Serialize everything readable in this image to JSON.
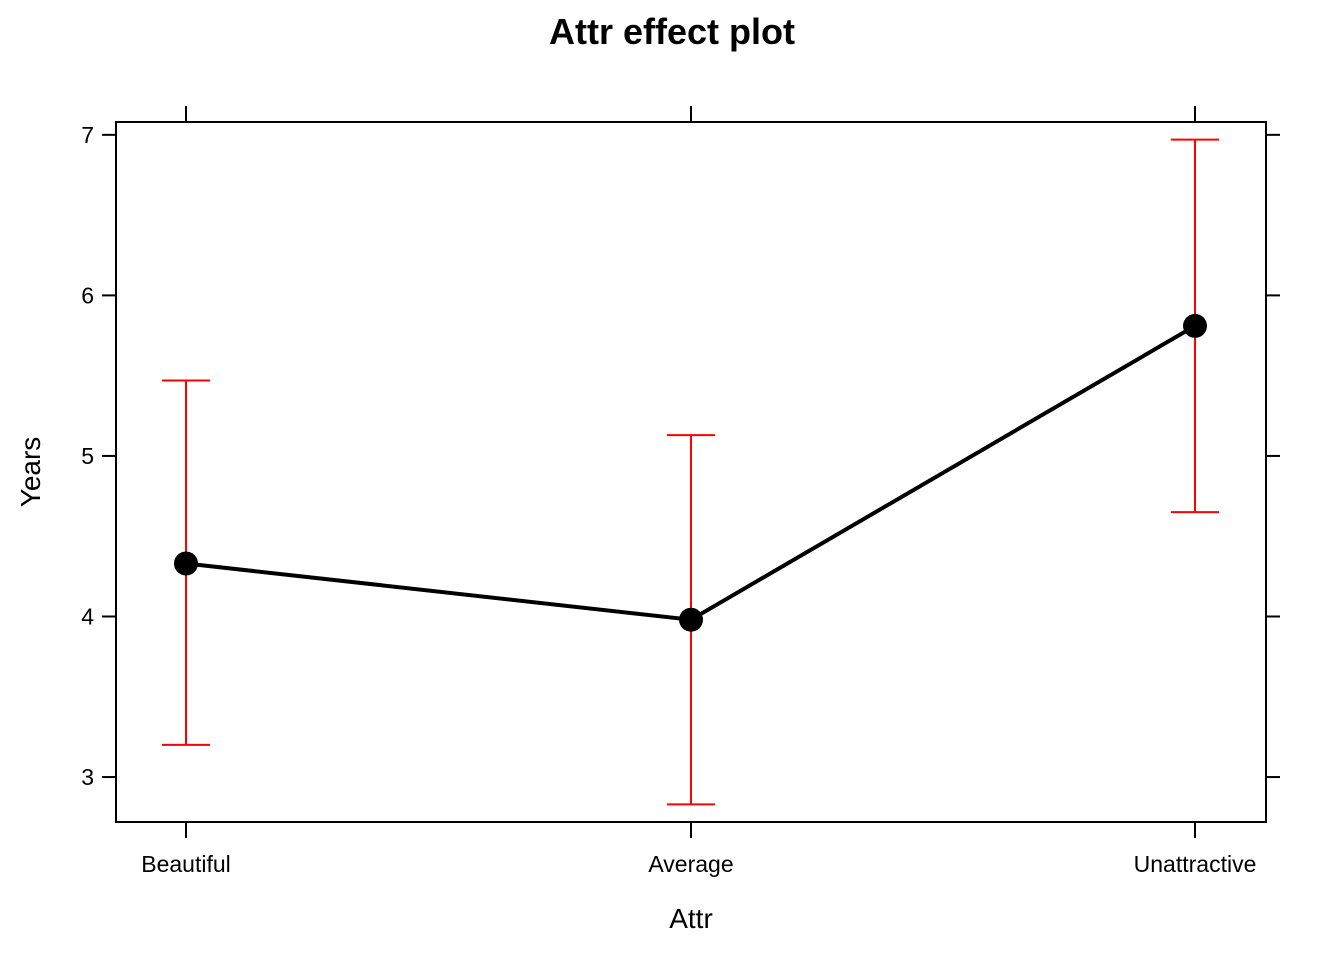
{
  "chart_data": {
    "type": "line",
    "title": "Attr effect plot",
    "xlabel": "Attr",
    "ylabel": "Years",
    "categories": [
      "Beautiful",
      "Average",
      "Unattractive"
    ],
    "series": [
      {
        "values": [
          4.33,
          3.98,
          5.81
        ],
        "lower": [
          3.2,
          2.83,
          4.65
        ],
        "upper": [
          5.47,
          5.13,
          6.97
        ]
      }
    ],
    "ylim": [
      2.72,
      7.08
    ],
    "yticks": [
      3,
      4,
      5,
      6,
      7
    ],
    "grid": false,
    "colors": {
      "line": "#000000",
      "points": "#000000",
      "error_bars": "#ff0000",
      "frame": "#000000"
    }
  }
}
